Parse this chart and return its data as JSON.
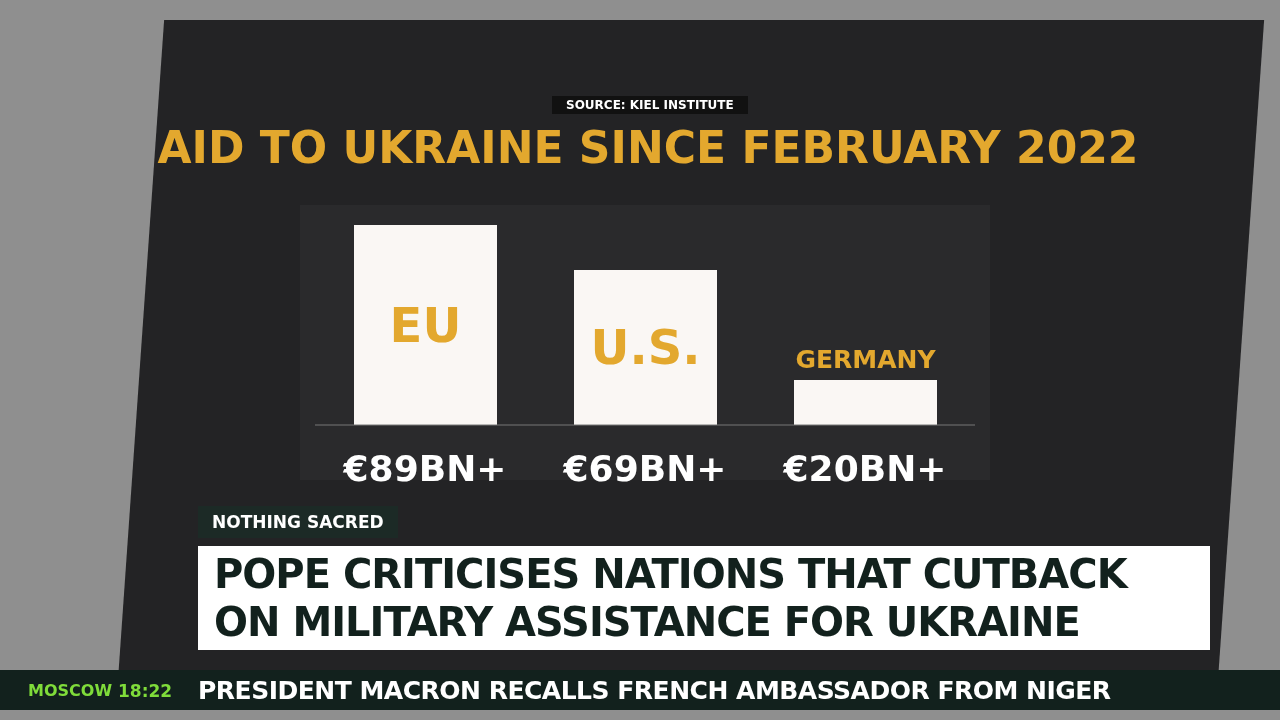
{
  "chart_data": {
    "type": "bar",
    "title": "AID TO UKRAINE SINCE FEBRUARY 2022",
    "categories": [
      "EU",
      "U.S.",
      "GERMANY"
    ],
    "values": [
      89,
      69,
      20
    ],
    "value_labels": [
      "€89BN+",
      "€69BN+",
      "€20BN+"
    ],
    "color": "#faf7f4",
    "annotations": [
      "SOURCE: KIEL INSTITUTE",
      "NOTHING SACRED",
      "POPE CRITICISES NATIONS THAT CUTBACK ON MILITARY ASSISTANCE FOR UKRAINE",
      "MOSCOW",
      "18:22",
      "PRESIDENT MACRON RECALLS FRENCH AMBASSADOR FROM NIGER"
    ]
  }
}
